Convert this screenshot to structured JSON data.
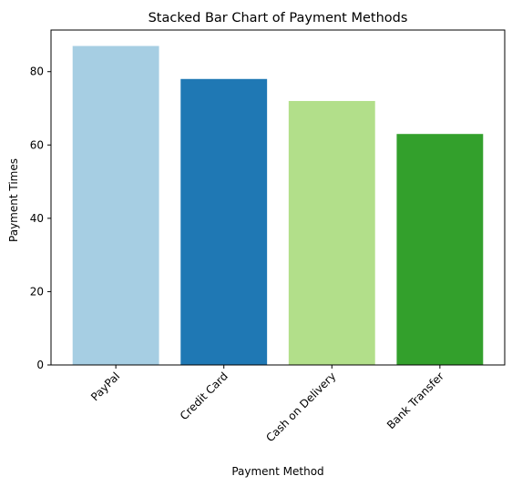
{
  "chart_data": {
    "type": "bar",
    "title": "Stacked Bar Chart of Payment Methods",
    "xlabel": "Payment Method",
    "ylabel": "Payment Times",
    "categories": [
      "PayPal",
      "Credit Card",
      "Cash on Delivery",
      "Bank Transfer"
    ],
    "values": [
      87,
      78,
      72,
      63
    ],
    "colors": [
      "#a6cee3",
      "#1f78b4",
      "#b2df8a",
      "#33a02c"
    ],
    "ylim": [
      0,
      91.35
    ],
    "yticks": [
      0,
      20,
      40,
      60,
      80
    ],
    "ytick_labels": [
      "0",
      "20",
      "40",
      "60",
      "80"
    ],
    "grid": false,
    "legend": "none"
  }
}
